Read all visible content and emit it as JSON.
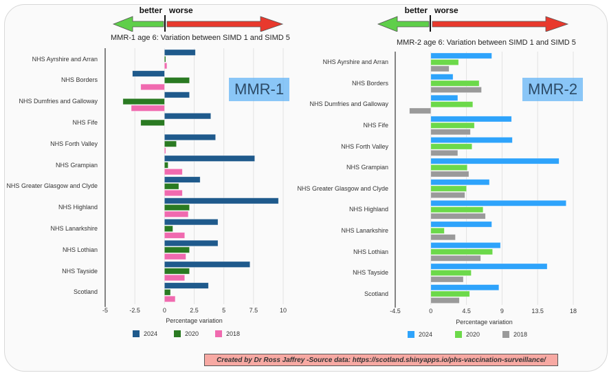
{
  "credit_text": "Created by Dr Ross Jaffrey -Source data: https://scotland.shinyapps.io/phs-vaccination-surveillance/",
  "direction_arrow": {
    "better_label": "better",
    "worse_label": "worse",
    "better_color": "#5fcf4a",
    "worse_color": "#e8392d"
  },
  "chart_data": [
    {
      "type": "bar",
      "orientation": "horizontal",
      "title": "MMR-1 age 6: Variation between SIMD 1 and SIMD 5",
      "badge": "MMR-1",
      "xlabel": "Percentage variation",
      "ylabel": "",
      "xlim": [
        -5,
        10
      ],
      "xticks": [
        "-5",
        "-2.5",
        "0",
        "2.5",
        "5",
        "7.5",
        "10"
      ],
      "xtick_values": [
        -5,
        -2.5,
        0,
        2.5,
        5,
        7.5,
        10
      ],
      "grid": true,
      "legend_position": "bottom",
      "categories": [
        "NHS Ayrshire and Arran",
        "NHS Borders",
        "NHS Dumfries and Galloway",
        "NHS Fife",
        "NHS Forth Valley",
        "NHS Grampian",
        "NHS Greater Glasgow and Clyde",
        "NHS Highland",
        "NHS Lanarkshire",
        "NHS Lothian",
        "NHS Tayside",
        "Scotland"
      ],
      "series": [
        {
          "name": "2024",
          "color": "#1f5a8c",
          "values": [
            2.6,
            -2.7,
            2.1,
            3.9,
            4.3,
            7.6,
            3.0,
            9.6,
            4.5,
            4.5,
            7.2,
            3.7
          ]
        },
        {
          "name": "2020",
          "color": "#2a7a22",
          "values": [
            0.1,
            2.1,
            -3.5,
            -2.0,
            1.0,
            0.3,
            1.2,
            2.1,
            0.7,
            2.1,
            2.1,
            0.5
          ]
        },
        {
          "name": "2018",
          "color": "#f06aaf",
          "values": [
            0.2,
            -2.0,
            -2.8,
            0,
            0.1,
            1.5,
            1.5,
            2.0,
            1.7,
            1.8,
            1.7,
            0.9
          ]
        }
      ]
    },
    {
      "type": "bar",
      "orientation": "horizontal",
      "title": "MMR-2 age 6: Variation between SIMD 1 and SIMD 5",
      "badge": "MMR-2",
      "xlabel": "Percentage variation",
      "ylabel": "",
      "xlim": [
        -4.5,
        18
      ],
      "xticks": [
        "-4.5",
        "0",
        "4.5",
        "9",
        "13.5",
        "18"
      ],
      "xtick_values": [
        -4.5,
        0,
        4.5,
        9,
        13.5,
        18
      ],
      "grid": true,
      "legend_position": "bottom",
      "categories": [
        "NHS Ayrshire and Arran",
        "NHS Borders",
        "NHS Dumfries and Galloway",
        "NHS Fife",
        "NHS Forth Valley",
        "NHS Grampian",
        "NHS Greater Glasgow and Clyde",
        "NHS Highland",
        "NHS Lanarkshire",
        "NHS Lothian",
        "NHS Tayside",
        "Scotland"
      ],
      "series": [
        {
          "name": "2024",
          "color": "#2ea3fb",
          "values": [
            7.7,
            2.8,
            3.4,
            10.2,
            10.3,
            16.2,
            7.4,
            17.1,
            7.7,
            8.8,
            14.7,
            8.6
          ]
        },
        {
          "name": "2020",
          "color": "#6cd94a",
          "values": [
            3.5,
            6.1,
            5.3,
            5.5,
            5.2,
            4.6,
            4.5,
            6.6,
            1.7,
            7.8,
            5.1,
            4.9
          ]
        },
        {
          "name": "2018",
          "color": "#9a9a9a",
          "values": [
            2.3,
            6.4,
            -2.7,
            5.0,
            3.4,
            4.8,
            4.3,
            6.9,
            3.1,
            6.3,
            4.1,
            3.6
          ]
        }
      ]
    }
  ]
}
